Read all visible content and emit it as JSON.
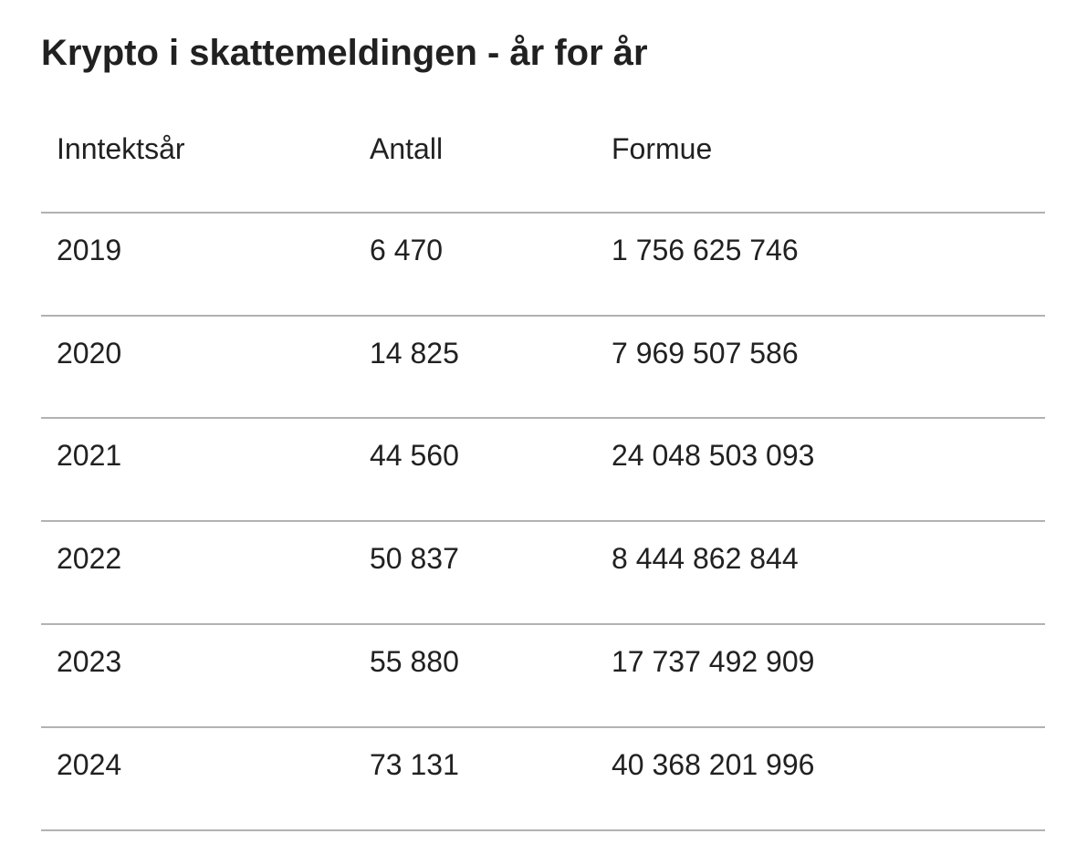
{
  "page": {
    "title": "Krypto i skattemeldingen - år for år"
  },
  "table": {
    "columns": [
      "Inntektsår",
      "Antall",
      "Formue"
    ],
    "rows": [
      [
        "2019",
        "6 470",
        "1 756 625 746"
      ],
      [
        "2020",
        "14 825",
        "7 969 507 586"
      ],
      [
        "2021",
        "44 560",
        "24 048 503 093"
      ],
      [
        "2022",
        "50 837",
        "8 444 862 844"
      ],
      [
        "2023",
        "55 880",
        "17 737 492 909"
      ],
      [
        "2024",
        "73 131",
        "40 368 201 996"
      ]
    ]
  },
  "chart_data": {
    "type": "table",
    "title": "Krypto i skattemeldingen - år for år",
    "columns": [
      "Inntektsår",
      "Antall",
      "Formue"
    ],
    "categories": [
      "2019",
      "2020",
      "2021",
      "2022",
      "2023",
      "2024"
    ],
    "series": [
      {
        "name": "Antall",
        "values": [
          6470,
          14825,
          44560,
          50837,
          55880,
          73131
        ]
      },
      {
        "name": "Formue",
        "values": [
          1756625746,
          7969507586,
          24048503093,
          8444862844,
          17737492909,
          40368201996
        ]
      }
    ],
    "layout_hints": {
      "header_divider": true,
      "row_dividers": true,
      "grid": "horizontal-only"
    }
  },
  "colors": {
    "background": "#ffffff",
    "text": "#212121",
    "divider": "#b2b2b2"
  }
}
